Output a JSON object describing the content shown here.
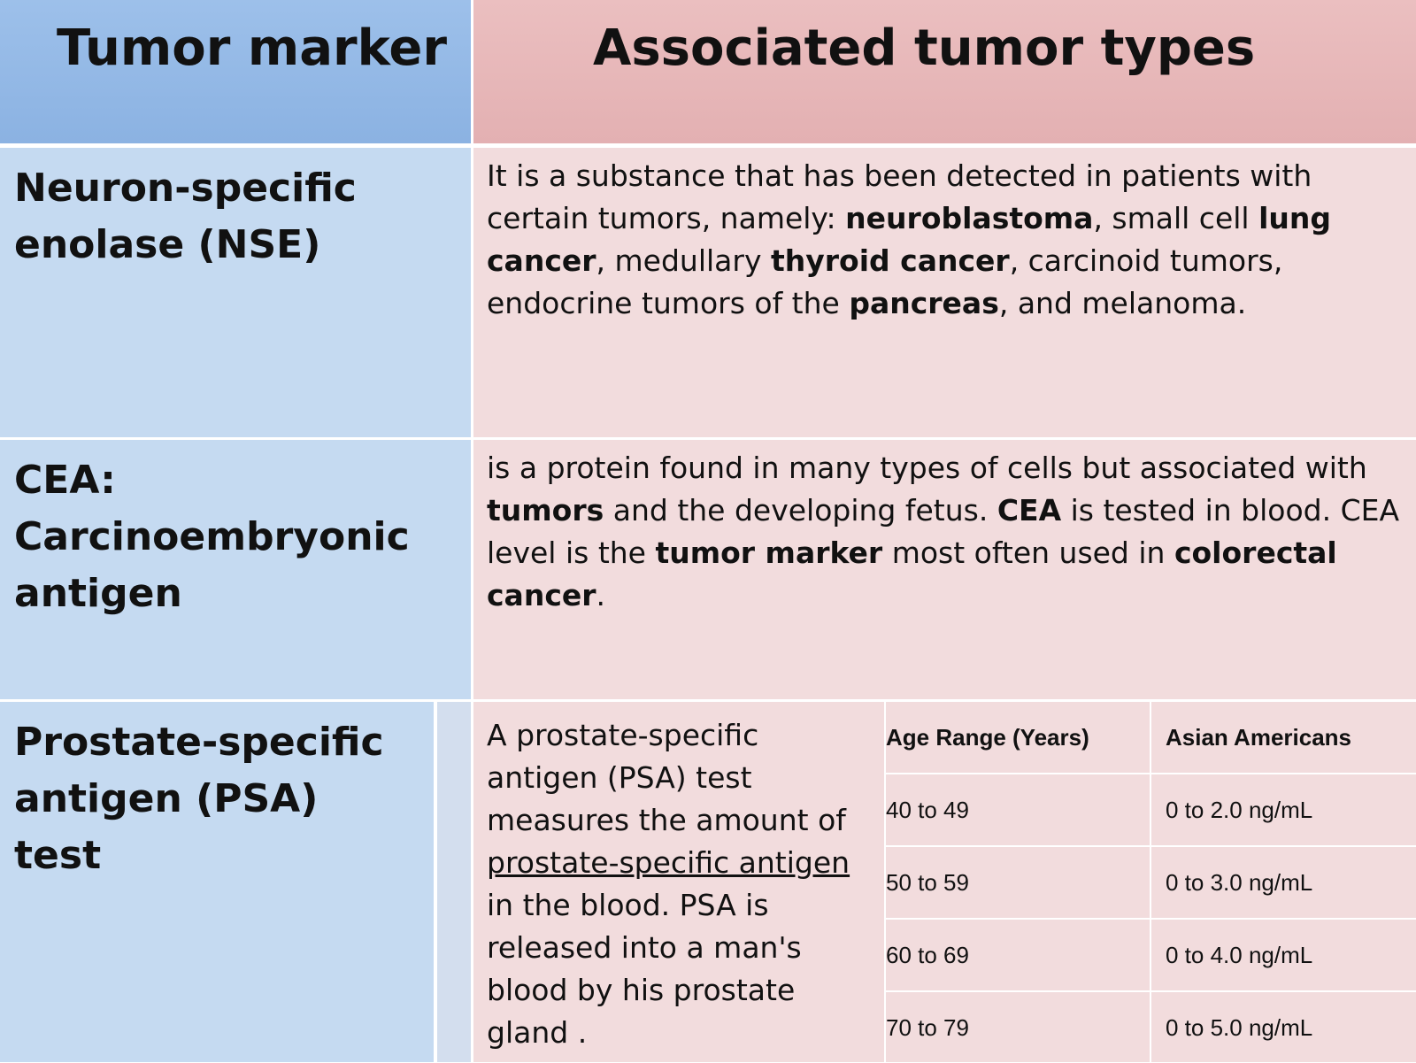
{
  "headers": {
    "col1": "Tumor marker",
    "col2": "Associated tumor types"
  },
  "rows": [
    {
      "marker": "Neuron-specific enolase (NSE)",
      "description": [
        {
          "t": "It is a substance that has been detected in patients with certain tumors, namely: "
        },
        {
          "t": "neuroblastoma",
          "b": true
        },
        {
          "t": ", small cell "
        },
        {
          "t": "lung cancer",
          "b": true
        },
        {
          "t": ", medullary "
        },
        {
          "t": "thyroid cancer",
          "b": true
        },
        {
          "t": ", carcinoid tumors, endocrine tumors of the "
        },
        {
          "t": "pancreas",
          "b": true
        },
        {
          "t": ", and melanoma."
        }
      ]
    },
    {
      "marker": "CEA: Carcinoembryonic antigen",
      "description": [
        {
          "t": "is a protein found in many types of cells but associated with "
        },
        {
          "t": "tumors",
          "b": true
        },
        {
          "t": " and the developing fetus. "
        },
        {
          "t": "CEA",
          "b": true
        },
        {
          "t": " is tested in blood. CEA level is the "
        },
        {
          "t": "tumor marker",
          "b": true
        },
        {
          "t": " most often used in "
        },
        {
          "t": "colorectal cancer",
          "b": true
        },
        {
          "t": "."
        }
      ]
    },
    {
      "marker": "Prostate-specific antigen (PSA) test",
      "description": [
        {
          "t": "A prostate-specific antigen (PSA) test measures the amount of "
        },
        {
          "t": "prostate-specific antigen ",
          "u": true
        },
        {
          "t": "in the blood. PSA is released into a man's blood by his prostate gland ."
        }
      ],
      "psa_table": {
        "headers": [
          "Age Range (Years)",
          "Asian Americans"
        ],
        "rows": [
          [
            "40 to 49",
            "0 to 2.0 ng/mL"
          ],
          [
            "50 to 59",
            "0 to 3.0 ng/mL"
          ],
          [
            "60 to 69",
            "0 to 4.0 ng/mL"
          ],
          [
            "70 to 79",
            "0 to 5.0 ng/mL"
          ]
        ]
      }
    }
  ],
  "colors": {
    "header_blue": "#8bb2e2",
    "header_pink": "#e3b0b2",
    "body_blue": "#c5daf1",
    "body_pink": "#f2dcdd"
  }
}
